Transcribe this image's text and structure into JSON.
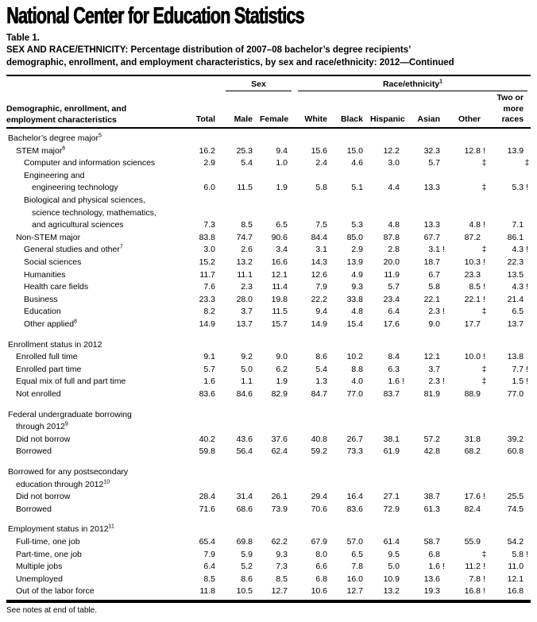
{
  "brand": "National Center for Education Statistics",
  "table_label": "Table 1.",
  "title_line1": "SEX AND RACE/ETHNICITY: Percentage distribution of 2007–08 bachelor’s degree recipients’",
  "title_line2": "demographic, enrollment, and employment characteristics, by sex and race/ethnicity: 2012—Continued",
  "footer_note": "See notes at end of table.",
  "table": {
    "stub_head": "Demographic, enrollment, and\nemployment characteristics",
    "spanners": {
      "sex": {
        "label": "Sex",
        "sup": ""
      },
      "race": {
        "label": "Race/ethnicity",
        "sup": "1"
      }
    },
    "columns": [
      "Total",
      "Male",
      "Female",
      "White",
      "Black",
      "Hispanic",
      "Asian",
      "Other",
      "Two or\nmore\nraces"
    ],
    "rows": [
      {
        "t": "section",
        "label": "Bachelor’s degree major",
        "sup": "5",
        "indent": 0
      },
      {
        "t": "data",
        "label": "STEM major",
        "sup": "6",
        "indent": 1,
        "values": [
          "16.2",
          "25.3",
          "9.4",
          "15.6",
          "15.0",
          "12.2",
          "32.3",
          "12.8 !",
          "13.9"
        ]
      },
      {
        "t": "data",
        "label": "Computer and information sciences",
        "sup": "",
        "indent": 2,
        "values": [
          "2.9",
          "5.4",
          "1.0",
          "2.4",
          "4.6",
          "3.0",
          "5.7",
          "‡",
          "‡"
        ]
      },
      {
        "t": "section",
        "label": "Engineering and",
        "sup": "",
        "indent": 2
      },
      {
        "t": "data",
        "label": "engineering technology",
        "sup": "",
        "indent": 3,
        "values": [
          "6.0",
          "11.5",
          "1.9",
          "5.8",
          "5.1",
          "4.4",
          "13.3",
          "‡",
          "5.3 !"
        ]
      },
      {
        "t": "section",
        "label": "Biological and physical sciences,",
        "sup": "",
        "indent": 2
      },
      {
        "t": "section",
        "label": "science technology, mathematics,",
        "sup": "",
        "indent": 3
      },
      {
        "t": "data",
        "label": "and agricultural sciences",
        "sup": "",
        "indent": 3,
        "values": [
          "7.3",
          "8.5",
          "6.5",
          "7.5",
          "5.3",
          "4.8",
          "13.3",
          "4.8 !",
          "7.1"
        ]
      },
      {
        "t": "data",
        "label": "Non-STEM major",
        "sup": "",
        "indent": 1,
        "values": [
          "83.8",
          "74.7",
          "90.6",
          "84.4",
          "85.0",
          "87.8",
          "67.7",
          "87.2",
          "86.1"
        ]
      },
      {
        "t": "data",
        "label": "General studies and other",
        "sup": "7",
        "indent": 2,
        "values": [
          "3.0",
          "2.6",
          "3.4",
          "3.1",
          "2.9",
          "2.8",
          "3.1 !",
          "‡",
          "4.3 !"
        ]
      },
      {
        "t": "data",
        "label": "Social sciences",
        "sup": "",
        "indent": 2,
        "values": [
          "15.2",
          "13.2",
          "16.6",
          "14.3",
          "13.9",
          "20.0",
          "18.7",
          "10.3 !",
          "22.3"
        ]
      },
      {
        "t": "data",
        "label": "Humanities",
        "sup": "",
        "indent": 2,
        "values": [
          "11.7",
          "11.1",
          "12.1",
          "12.6",
          "4.9",
          "11.9",
          "6.7",
          "23.3",
          "13.5"
        ]
      },
      {
        "t": "data",
        "label": "Health care fields",
        "sup": "",
        "indent": 2,
        "values": [
          "7.6",
          "2.3",
          "11.4",
          "7.9",
          "9.3",
          "5.7",
          "5.8",
          "8.5 !",
          "4.3 !"
        ]
      },
      {
        "t": "data",
        "label": "Business",
        "sup": "",
        "indent": 2,
        "values": [
          "23.3",
          "28.0",
          "19.8",
          "22.2",
          "33.8",
          "23.4",
          "22.1",
          "22.1 !",
          "21.4"
        ]
      },
      {
        "t": "data",
        "label": "Education",
        "sup": "",
        "indent": 2,
        "values": [
          "8.2",
          "3.7",
          "11.5",
          "9.4",
          "4.8",
          "6.4",
          "2.3 !",
          "‡",
          "6.5"
        ]
      },
      {
        "t": "data",
        "label": "Other applied",
        "sup": "8",
        "indent": 2,
        "values": [
          "14.9",
          "13.7",
          "15.7",
          "14.9",
          "15.4",
          "17.6",
          "9.0",
          "17.7",
          "13.7"
        ]
      },
      {
        "t": "spacer"
      },
      {
        "t": "section",
        "label": "Enrollment status in 2012",
        "sup": "",
        "indent": 0
      },
      {
        "t": "data",
        "label": "Enrolled full time",
        "sup": "",
        "indent": 1,
        "values": [
          "9.1",
          "9.2",
          "9.0",
          "8.6",
          "10.2",
          "8.4",
          "12.1",
          "10.0 !",
          "13.8"
        ]
      },
      {
        "t": "data",
        "label": "Enrolled part time",
        "sup": "",
        "indent": 1,
        "values": [
          "5.7",
          "5.0",
          "6.2",
          "5.4",
          "8.8",
          "6.3",
          "3.7",
          "‡",
          "7.7 !"
        ]
      },
      {
        "t": "data",
        "label": "Equal mix of full and part time",
        "sup": "",
        "indent": 1,
        "values": [
          "1.6",
          "1.1",
          "1.9",
          "1.3",
          "4.0",
          "1.6 !",
          "2.3 !",
          "‡",
          "1.5 !"
        ]
      },
      {
        "t": "data",
        "label": "Not enrolled",
        "sup": "",
        "indent": 1,
        "values": [
          "83.6",
          "84.6",
          "82.9",
          "84.7",
          "77.0",
          "83.7",
          "81.9",
          "88.9",
          "77.0"
        ]
      },
      {
        "t": "spacer"
      },
      {
        "t": "section",
        "label": "Federal undergraduate borrowing",
        "sup": "",
        "indent": 0
      },
      {
        "t": "section",
        "label": "through 2012",
        "sup": "9",
        "indent": 1
      },
      {
        "t": "data",
        "label": "Did not borrow",
        "sup": "",
        "indent": 1,
        "values": [
          "40.2",
          "43.6",
          "37.6",
          "40.8",
          "26.7",
          "38.1",
          "57.2",
          "31.8",
          "39.2"
        ]
      },
      {
        "t": "data",
        "label": "Borrowed",
        "sup": "",
        "indent": 1,
        "values": [
          "59.8",
          "56.4",
          "62.4",
          "59.2",
          "73.3",
          "61.9",
          "42.8",
          "68.2",
          "60.8"
        ]
      },
      {
        "t": "spacer"
      },
      {
        "t": "section",
        "label": "Borrowed for any postsecondary",
        "sup": "",
        "indent": 0
      },
      {
        "t": "section",
        "label": "education through 2012",
        "sup": "10",
        "indent": 1
      },
      {
        "t": "data",
        "label": "Did not borrow",
        "sup": "",
        "indent": 1,
        "values": [
          "28.4",
          "31.4",
          "26.1",
          "29.4",
          "16.4",
          "27.1",
          "38.7",
          "17.6 !",
          "25.5"
        ]
      },
      {
        "t": "data",
        "label": "Borrowed",
        "sup": "",
        "indent": 1,
        "values": [
          "71.6",
          "68.6",
          "73.9",
          "70.6",
          "83.6",
          "72.9",
          "61.3",
          "82.4",
          "74.5"
        ]
      },
      {
        "t": "spacer"
      },
      {
        "t": "section",
        "label": "Employment status in 2012",
        "sup": "11",
        "indent": 0
      },
      {
        "t": "data",
        "label": "Full-time, one job",
        "sup": "",
        "indent": 1,
        "values": [
          "65.4",
          "69.8",
          "62.2",
          "67.9",
          "57.0",
          "61.4",
          "58.7",
          "55.9",
          "54.2"
        ]
      },
      {
        "t": "data",
        "label": "Part-time, one job",
        "sup": "",
        "indent": 1,
        "values": [
          "7.9",
          "5.9",
          "9.3",
          "8.0",
          "6.5",
          "9.5",
          "6.8",
          "‡",
          "5.8 !"
        ]
      },
      {
        "t": "data",
        "label": "Multiple jobs",
        "sup": "",
        "indent": 1,
        "values": [
          "6.4",
          "5.2",
          "7.3",
          "6.6",
          "7.8",
          "5.0",
          "1.6 !",
          "11.2 !",
          "11.0"
        ]
      },
      {
        "t": "data",
        "label": "Unemployed",
        "sup": "",
        "indent": 1,
        "values": [
          "8.5",
          "8.6",
          "8.5",
          "6.8",
          "16.0",
          "10.9",
          "13.6",
          "7.8 !",
          "12.1"
        ]
      },
      {
        "t": "data",
        "label": "Out of the labor force",
        "sup": "",
        "indent": 1,
        "values": [
          "11.8",
          "10.5",
          "12.7",
          "10.6",
          "12.7",
          "13.2",
          "19.3",
          "16.8 !",
          "16.8"
        ]
      }
    ]
  }
}
